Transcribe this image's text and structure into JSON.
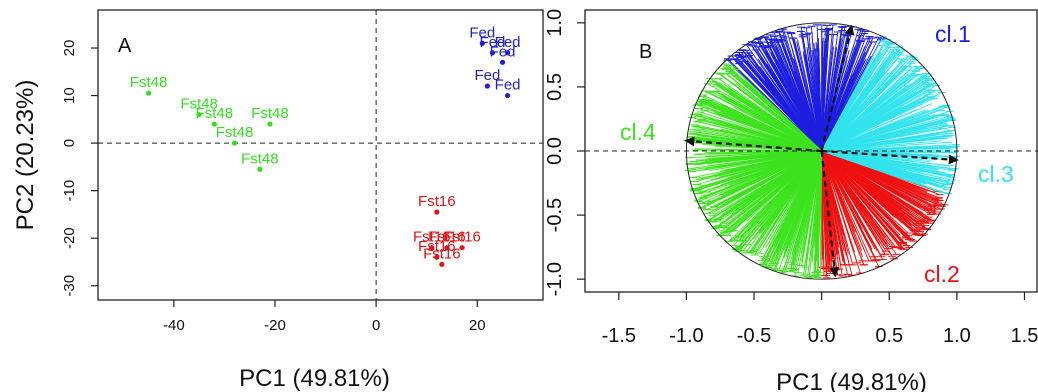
{
  "chart_data": [
    {
      "panel_label": "A",
      "type": "scatter",
      "xlabel": "PC1 (49.81%)",
      "ylabel": "PC2 (20.23%)",
      "xlim": [
        -55,
        33
      ],
      "ylim": [
        -33,
        28
      ],
      "xticks": [
        -40,
        -20,
        0,
        20
      ],
      "yticks": [
        -30,
        -20,
        -10,
        0,
        10,
        20
      ],
      "reference_lines": {
        "x": 0,
        "y": 0,
        "style": "dashed"
      },
      "series": [
        {
          "group": "Fed",
          "color": "#1f1fd6",
          "points": [
            {
              "x": 21,
              "y": 21,
              "label": "Fed"
            },
            {
              "x": 23,
              "y": 19,
              "label": "Fed"
            },
            {
              "x": 26,
              "y": 19,
              "label": "Fed"
            },
            {
              "x": 25,
              "y": 17,
              "label": "Fed"
            },
            {
              "x": 22,
              "y": 12,
              "label": "Fed"
            },
            {
              "x": 26,
              "y": 10,
              "label": "Fed"
            }
          ]
        },
        {
          "group": "Fst48",
          "color": "#33e020",
          "points": [
            {
              "x": -45,
              "y": 10.5,
              "label": "Fst48"
            },
            {
              "x": -35,
              "y": 6,
              "label": "Fst48"
            },
            {
              "x": -32,
              "y": 4,
              "label": "Fst48"
            },
            {
              "x": -21,
              "y": 4,
              "label": "Fst48"
            },
            {
              "x": -28,
              "y": 0,
              "label": "Fst48"
            },
            {
              "x": -23,
              "y": -5.5,
              "label": "Fst48"
            }
          ]
        },
        {
          "group": "Fst16",
          "color": "#e01515",
          "points": [
            {
              "x": 12,
              "y": -14.5,
              "label": "Fst16"
            },
            {
              "x": 11,
              "y": -22,
              "label": "Fst16"
            },
            {
              "x": 14,
              "y": -22,
              "label": "Fst16"
            },
            {
              "x": 17,
              "y": -22,
              "label": "Fst16"
            },
            {
              "x": 12,
              "y": -24,
              "label": "Fst16"
            },
            {
              "x": 13,
              "y": -25.5,
              "label": "Fst16"
            }
          ]
        }
      ]
    },
    {
      "panel_label": "B",
      "type": "scatter",
      "description": "correlation circle of variables on PC1/PC2, colored by cluster, with cluster centroid arrows",
      "xlabel": "PC1 (49.81%)",
      "ylabel": "",
      "xlim": [
        -1.75,
        1.6
      ],
      "ylim": [
        -1.1,
        1.1
      ],
      "xticks": [
        -1.5,
        -1.0,
        -0.5,
        0.0,
        0.5,
        1.0,
        1.5
      ],
      "xtick_labels": [
        "-1.5",
        "-1.0",
        "-0.5",
        "0.0",
        "0.5",
        "1.0",
        "1.5"
      ],
      "yticks": [
        -1.0,
        -0.5,
        0.0,
        0.5,
        1.0
      ],
      "ytick_labels": [
        "-1.0",
        "-0.5",
        "0.0",
        "0.5",
        "1.0"
      ],
      "unit_circle": true,
      "reference_lines": {
        "y": 0,
        "style": "dashed"
      },
      "clusters": [
        {
          "name": "cl.1",
          "color": "#1e1ee0",
          "arrow": [
            0.22,
            0.97
          ],
          "sector_deg": [
            63,
            135
          ]
        },
        {
          "name": "cl.2",
          "color": "#ee1111",
          "arrow": [
            0.1,
            -0.97
          ],
          "sector_deg": [
            -90,
            -20
          ]
        },
        {
          "name": "cl.3",
          "color": "#33e3ee",
          "arrow": [
            1.0,
            -0.07
          ],
          "sector_deg": [
            -20,
            63
          ]
        },
        {
          "name": "cl.4",
          "color": "#3de31e",
          "arrow": [
            -1.0,
            0.08
          ],
          "sector_deg": [
            135,
            270
          ]
        }
      ]
    }
  ],
  "colors": {
    "fed": "#1f1fd6",
    "fst48": "#33e020",
    "fst16": "#e01515",
    "cl1": "#1e1ee0",
    "cl2": "#ee1111",
    "cl3": "#33e3ee",
    "cl4": "#3de31e"
  }
}
